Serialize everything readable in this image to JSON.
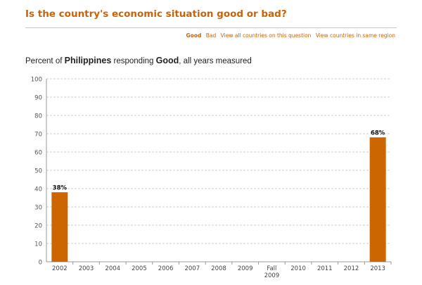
{
  "page": {
    "title": "Is the country's economic situation good or bad?"
  },
  "toolbar": {
    "good_label": "Good",
    "bad_label": "Bad",
    "all_countries_label": "View all countries on this question",
    "same_region_label": "View countries in same region"
  },
  "subtitle": {
    "prefix": "Percent of",
    "country": "Philippines",
    "middle": "responding",
    "response": "Good",
    "suffix": ", all years measured"
  },
  "colors": {
    "bar": "#cc6600",
    "accent": "#c9630a"
  },
  "chart_data": {
    "type": "bar",
    "categories": [
      "2002",
      "2003",
      "2004",
      "2005",
      "2006",
      "2007",
      "2008",
      "2009",
      "Fall 2009",
      "2010",
      "2011",
      "2012",
      "2013"
    ],
    "values": [
      38,
      null,
      null,
      null,
      null,
      null,
      null,
      null,
      null,
      null,
      null,
      null,
      68
    ],
    "data_labels": [
      "38%",
      "",
      "",
      "",
      "",
      "",
      "",
      "",
      "",
      "",
      "",
      "",
      "68%"
    ],
    "ylim": [
      0,
      100
    ],
    "yticks": [
      0,
      10,
      20,
      30,
      40,
      50,
      60,
      70,
      80,
      90,
      100
    ],
    "grid": true
  }
}
